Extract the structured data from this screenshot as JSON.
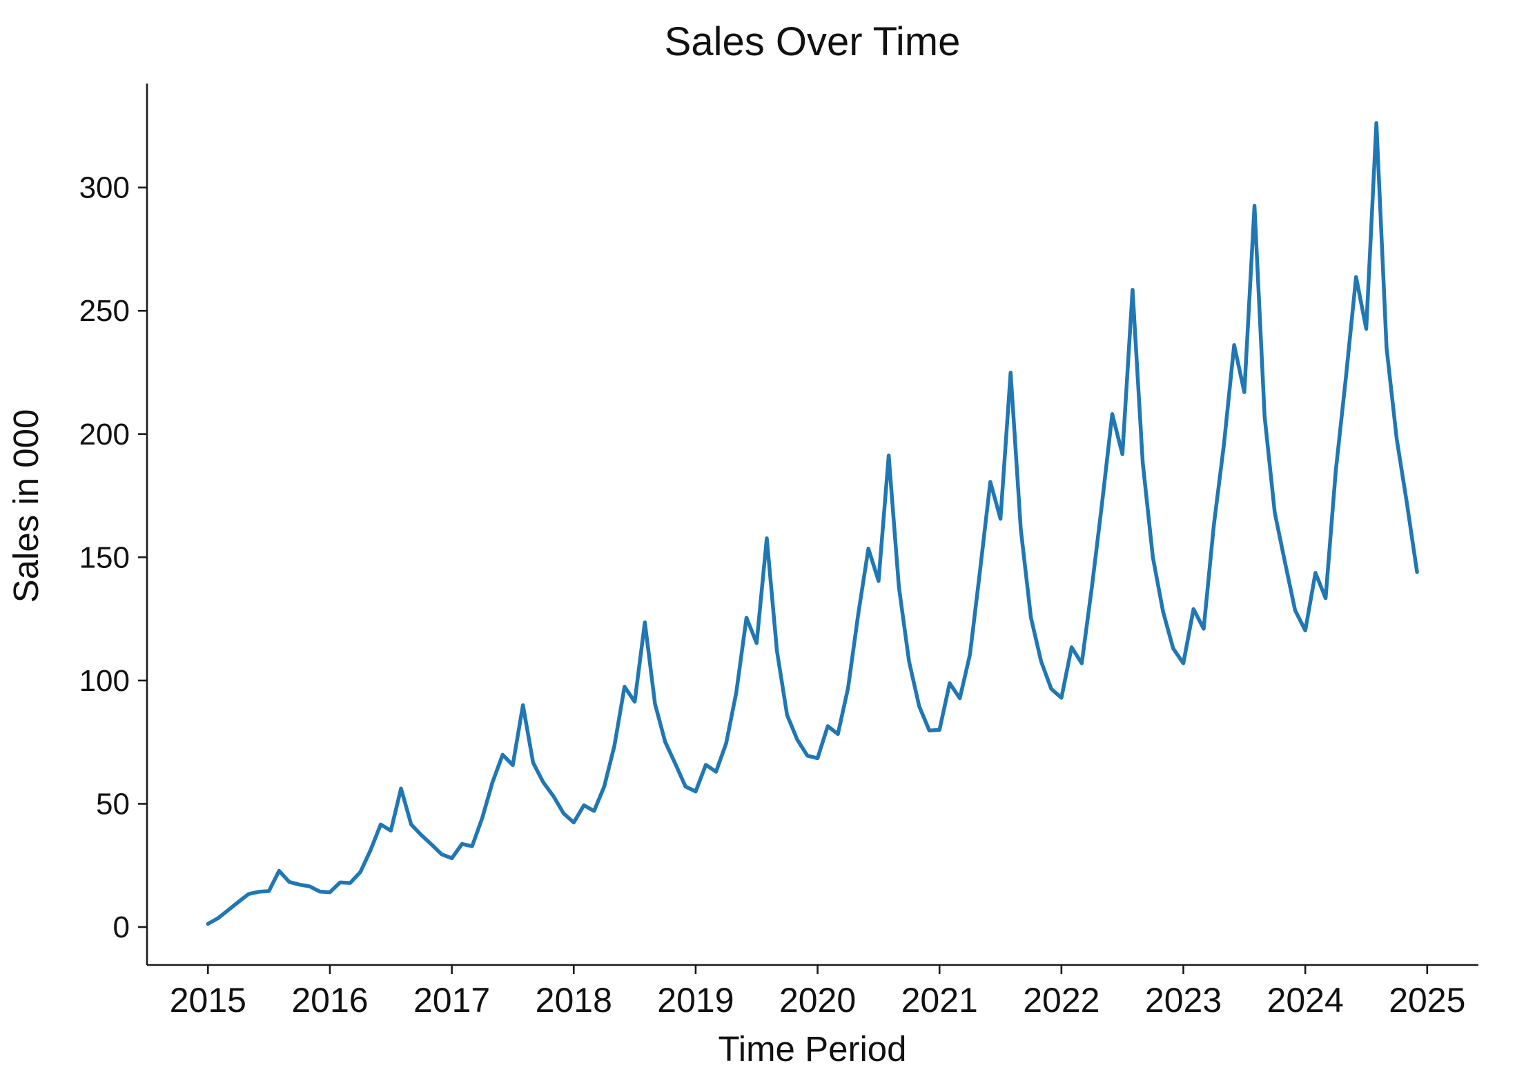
{
  "chart_data": {
    "type": "line",
    "title": "Sales Over Time",
    "xlabel": "Time Period",
    "ylabel": "Sales in 000",
    "grid": false,
    "legend": "none",
    "line_color": "#1f77b4",
    "axis_color": "#1a1a1a",
    "xlim": [
      2014.5,
      2025.42
    ],
    "ylim": [
      -15.4,
      342.2
    ],
    "x_ticks": [
      2015,
      2016,
      2017,
      2018,
      2019,
      2020,
      2021,
      2022,
      2023,
      2024,
      2025
    ],
    "x_tick_labels": [
      "2015",
      "2016",
      "2017",
      "2018",
      "2019",
      "2020",
      "2021",
      "2022",
      "2023",
      "2024",
      "2025"
    ],
    "y_ticks": [
      0,
      50,
      100,
      150,
      200,
      250,
      300
    ],
    "y_tick_labels": [
      "0",
      "50",
      "100",
      "150",
      "200",
      "250",
      "300"
    ],
    "series": [
      {
        "name": "Sales",
        "frequency": "monthly",
        "start_year": 2015,
        "start_month": 1,
        "end_year": 2024,
        "end_month": 12,
        "values": [
          1.3,
          3.6,
          6.9,
          10.2,
          13.4,
          14.3,
          14.6,
          22.8,
          18.3,
          17.2,
          16.5,
          14.4,
          14.1,
          18.1,
          17.9,
          22.3,
          31.2,
          41.6,
          39.1,
          56.2,
          41.6,
          37.3,
          33.5,
          29.5,
          27.9,
          33.7,
          32.8,
          44.3,
          58.7,
          69.9,
          65.7,
          90.0,
          66.7,
          58.7,
          53.1,
          46.1,
          42.4,
          49.4,
          47.1,
          57.0,
          73.5,
          97.5,
          91.4,
          123.6,
          90.5,
          75.1,
          66.2,
          57.0,
          55.0,
          65.8,
          63.0,
          74.5,
          95.2,
          125.5,
          115.2,
          157.7,
          112.0,
          86.0,
          76.0,
          69.5,
          68.5,
          81.5,
          78.3,
          97.0,
          126.9,
          153.5,
          140.4,
          191.3,
          138.1,
          107.8,
          89.6,
          79.7,
          80.0,
          98.9,
          92.8,
          110.6,
          145.0,
          180.6,
          165.6,
          224.9,
          161.4,
          125.5,
          107.8,
          96.6,
          93.0,
          113.5,
          107.0,
          138.0,
          172.0,
          208.1,
          191.8,
          258.5,
          188.5,
          150.0,
          128.0,
          113.0,
          107.0,
          129.0,
          121.0,
          163.0,
          196.0,
          236.1,
          217.0,
          292.6,
          207.0,
          168.0,
          148.0,
          128.5,
          120.3,
          143.7,
          133.4,
          185.0,
          223.0,
          263.7,
          242.7,
          326.2,
          235.0,
          198.0,
          172.0,
          144.0
        ]
      }
    ]
  }
}
